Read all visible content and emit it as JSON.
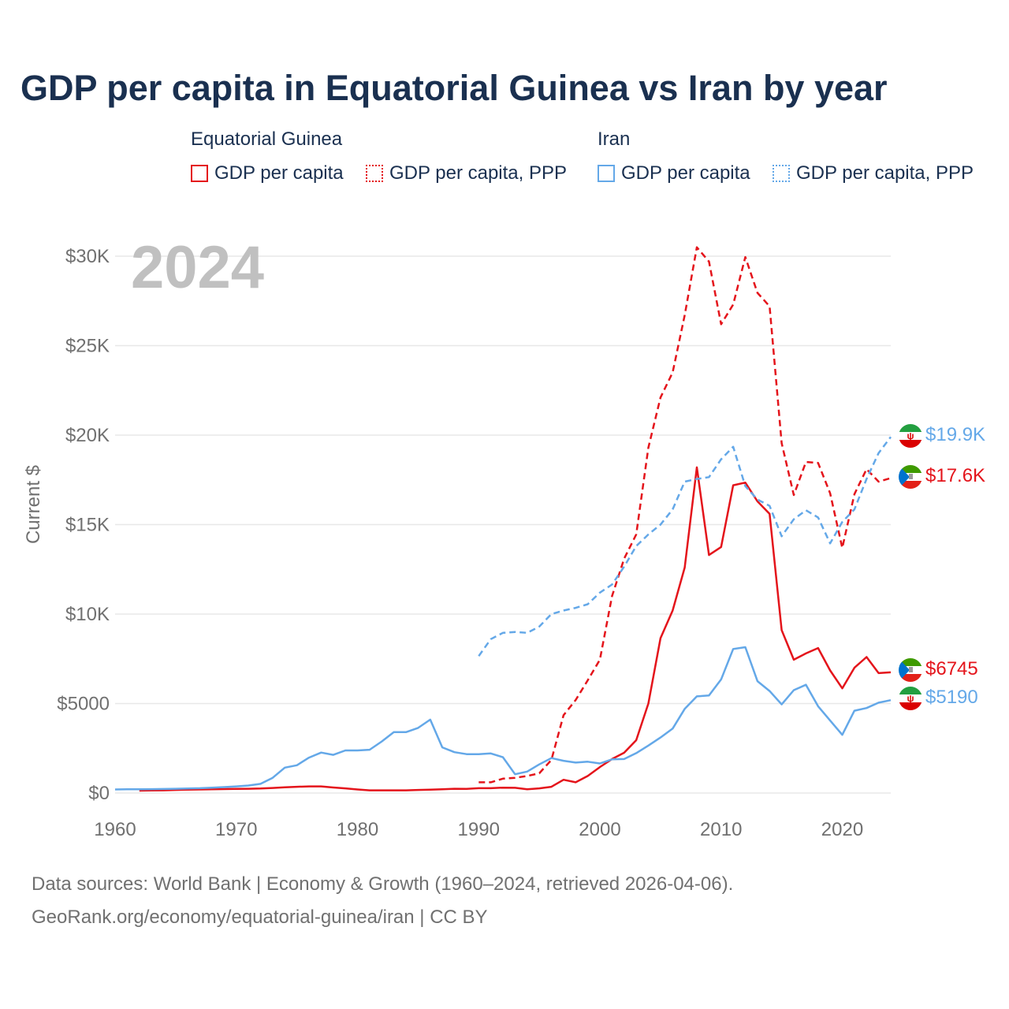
{
  "title": "GDP per capita in Equatorial Guinea vs Iran by year",
  "legend": {
    "groups": [
      {
        "name": "Equatorial Guinea",
        "items": [
          "GDP per capita",
          "GDP per capita, PPP"
        ]
      },
      {
        "name": "Iran",
        "items": [
          "GDP per capita",
          "GDP per capita, PPP"
        ]
      }
    ]
  },
  "year_label": "2024",
  "source": {
    "line1": "Data sources: World Bank | Economy & Growth (1960–2024, retrieved 2026-04-06).",
    "line2": "GeoRank.org/economy/equatorial-guinea/iran | CC BY"
  },
  "colors": {
    "equatorial_guinea": "#e4141b",
    "iran": "#64a8e8",
    "grid": "#e8e8e8",
    "axis_text": "#707070"
  },
  "end_labels": [
    {
      "text": "$19.9K",
      "series": "iran_ppp",
      "flag": "iran"
    },
    {
      "text": "$17.6K",
      "series": "eg_ppp",
      "flag": "equatorial-guinea"
    },
    {
      "text": "$6745",
      "series": "eg_gdp",
      "flag": "equatorial-guinea"
    },
    {
      "text": "$5190",
      "series": "iran_gdp",
      "flag": "iran"
    }
  ],
  "chart_data": {
    "type": "line",
    "title": "GDP per capita in Equatorial Guinea vs Iran by year",
    "xlabel": "",
    "ylabel": "Current $",
    "xlim": [
      1960,
      2024
    ],
    "ylim": [
      0,
      30000
    ],
    "x_ticks": [
      1960,
      1970,
      1980,
      1990,
      2000,
      2010,
      2020
    ],
    "x_tick_labels": [
      "1960",
      "1970",
      "1980",
      "1990",
      "2000",
      "2010",
      "2020"
    ],
    "y_ticks": [
      0,
      5000,
      10000,
      15000,
      20000,
      25000,
      30000
    ],
    "y_tick_labels": [
      "$0",
      "$5000",
      "$10K",
      "$15K",
      "$20K",
      "$25K",
      "$30K"
    ],
    "grid": true,
    "legend_position": "top",
    "series": [
      {
        "name": "Equatorial Guinea GDP per capita",
        "key": "eg_gdp",
        "color": "#e4141b",
        "style": "solid",
        "points": [
          [
            1962,
            130
          ],
          [
            1963,
            140
          ],
          [
            1964,
            150
          ],
          [
            1965,
            170
          ],
          [
            1966,
            190
          ],
          [
            1967,
            200
          ],
          [
            1968,
            210
          ],
          [
            1969,
            220
          ],
          [
            1970,
            230
          ],
          [
            1971,
            240
          ],
          [
            1972,
            250
          ],
          [
            1973,
            280
          ],
          [
            1974,
            320
          ],
          [
            1975,
            350
          ],
          [
            1976,
            370
          ],
          [
            1977,
            370
          ],
          [
            1978,
            310
          ],
          [
            1979,
            260
          ],
          [
            1980,
            200
          ],
          [
            1981,
            150
          ],
          [
            1982,
            150
          ],
          [
            1983,
            150
          ],
          [
            1984,
            150
          ],
          [
            1985,
            170
          ],
          [
            1986,
            190
          ],
          [
            1987,
            210
          ],
          [
            1988,
            240
          ],
          [
            1989,
            230
          ],
          [
            1990,
            270
          ],
          [
            1991,
            270
          ],
          [
            1992,
            300
          ],
          [
            1993,
            290
          ],
          [
            1994,
            210
          ],
          [
            1995,
            260
          ],
          [
            1996,
            350
          ],
          [
            1997,
            740
          ],
          [
            1998,
            600
          ],
          [
            1999,
            950
          ],
          [
            2000,
            1450
          ],
          [
            2001,
            1900
          ],
          [
            2002,
            2250
          ],
          [
            2003,
            2950
          ],
          [
            2004,
            5000
          ],
          [
            2005,
            8650
          ],
          [
            2006,
            10200
          ],
          [
            2007,
            12600
          ],
          [
            2008,
            18200
          ],
          [
            2009,
            13300
          ],
          [
            2010,
            13750
          ],
          [
            2011,
            17200
          ],
          [
            2012,
            17350
          ],
          [
            2013,
            16300
          ],
          [
            2014,
            15600
          ],
          [
            2015,
            9100
          ],
          [
            2016,
            7450
          ],
          [
            2017,
            7800
          ],
          [
            2018,
            8100
          ],
          [
            2019,
            6850
          ],
          [
            2020,
            5850
          ],
          [
            2021,
            7000
          ],
          [
            2022,
            7600
          ],
          [
            2023,
            6700
          ],
          [
            2024,
            6745
          ]
        ]
      },
      {
        "name": "Equatorial Guinea GDP per capita, PPP",
        "key": "eg_ppp",
        "color": "#e4141b",
        "style": "dashed",
        "points": [
          [
            1990,
            600
          ],
          [
            1991,
            600
          ],
          [
            1992,
            800
          ],
          [
            1993,
            850
          ],
          [
            1994,
            950
          ],
          [
            1995,
            1100
          ],
          [
            1996,
            1850
          ],
          [
            1997,
            4350
          ],
          [
            1998,
            5200
          ],
          [
            1999,
            6300
          ],
          [
            2000,
            7450
          ],
          [
            2001,
            11000
          ],
          [
            2002,
            13100
          ],
          [
            2003,
            14450
          ],
          [
            2004,
            19300
          ],
          [
            2005,
            22100
          ],
          [
            2006,
            23500
          ],
          [
            2007,
            26700
          ],
          [
            2008,
            30500
          ],
          [
            2009,
            29700
          ],
          [
            2010,
            26200
          ],
          [
            2011,
            27300
          ],
          [
            2012,
            29950
          ],
          [
            2013,
            27950
          ],
          [
            2014,
            27200
          ],
          [
            2015,
            19550
          ],
          [
            2016,
            16650
          ],
          [
            2017,
            18500
          ],
          [
            2018,
            18450
          ],
          [
            2019,
            16750
          ],
          [
            2020,
            13700
          ],
          [
            2021,
            16700
          ],
          [
            2022,
            18100
          ],
          [
            2023,
            17400
          ],
          [
            2024,
            17600
          ]
        ]
      },
      {
        "name": "Iran GDP per capita",
        "key": "iran_gdp",
        "color": "#64a8e8",
        "style": "solid",
        "points": [
          [
            1960,
            200
          ],
          [
            1961,
            205
          ],
          [
            1962,
            210
          ],
          [
            1963,
            215
          ],
          [
            1964,
            225
          ],
          [
            1965,
            240
          ],
          [
            1966,
            255
          ],
          [
            1967,
            270
          ],
          [
            1968,
            300
          ],
          [
            1969,
            330
          ],
          [
            1970,
            370
          ],
          [
            1971,
            420
          ],
          [
            1972,
            510
          ],
          [
            1973,
            850
          ],
          [
            1974,
            1420
          ],
          [
            1975,
            1550
          ],
          [
            1976,
            1980
          ],
          [
            1977,
            2260
          ],
          [
            1978,
            2130
          ],
          [
            1979,
            2380
          ],
          [
            1980,
            2380
          ],
          [
            1981,
            2420
          ],
          [
            1982,
            2880
          ],
          [
            1983,
            3400
          ],
          [
            1984,
            3400
          ],
          [
            1985,
            3640
          ],
          [
            1986,
            4100
          ],
          [
            1987,
            2550
          ],
          [
            1988,
            2280
          ],
          [
            1989,
            2170
          ],
          [
            1990,
            2170
          ],
          [
            1991,
            2210
          ],
          [
            1992,
            2000
          ],
          [
            1993,
            1050
          ],
          [
            1994,
            1200
          ],
          [
            1995,
            1600
          ],
          [
            1996,
            1950
          ],
          [
            1997,
            1800
          ],
          [
            1998,
            1700
          ],
          [
            1999,
            1750
          ],
          [
            2000,
            1650
          ],
          [
            2001,
            1880
          ],
          [
            2002,
            1900
          ],
          [
            2003,
            2230
          ],
          [
            2004,
            2650
          ],
          [
            2005,
            3100
          ],
          [
            2006,
            3600
          ],
          [
            2007,
            4700
          ],
          [
            2008,
            5400
          ],
          [
            2009,
            5450
          ],
          [
            2010,
            6350
          ],
          [
            2011,
            8050
          ],
          [
            2012,
            8150
          ],
          [
            2013,
            6250
          ],
          [
            2014,
            5700
          ],
          [
            2015,
            4950
          ],
          [
            2016,
            5750
          ],
          [
            2017,
            6050
          ],
          [
            2018,
            4850
          ],
          [
            2019,
            4050
          ],
          [
            2020,
            3250
          ],
          [
            2021,
            4600
          ],
          [
            2022,
            4750
          ],
          [
            2023,
            5050
          ],
          [
            2024,
            5190
          ]
        ]
      },
      {
        "name": "Iran GDP per capita, PPP",
        "key": "iran_ppp",
        "color": "#64a8e8",
        "style": "dashed",
        "points": [
          [
            1990,
            7650
          ],
          [
            1991,
            8600
          ],
          [
            1992,
            8950
          ],
          [
            1993,
            9000
          ],
          [
            1994,
            8950
          ],
          [
            1995,
            9300
          ],
          [
            1996,
            10000
          ],
          [
            1997,
            10200
          ],
          [
            1998,
            10350
          ],
          [
            1999,
            10550
          ],
          [
            2000,
            11200
          ],
          [
            2001,
            11650
          ],
          [
            2002,
            12650
          ],
          [
            2003,
            13800
          ],
          [
            2004,
            14450
          ],
          [
            2005,
            15000
          ],
          [
            2006,
            15850
          ],
          [
            2007,
            17400
          ],
          [
            2008,
            17550
          ],
          [
            2009,
            17650
          ],
          [
            2010,
            18650
          ],
          [
            2011,
            19350
          ],
          [
            2012,
            17150
          ],
          [
            2013,
            16400
          ],
          [
            2014,
            16050
          ],
          [
            2015,
            14350
          ],
          [
            2016,
            15300
          ],
          [
            2017,
            15800
          ],
          [
            2018,
            15400
          ],
          [
            2019,
            13950
          ],
          [
            2020,
            15150
          ],
          [
            2021,
            15850
          ],
          [
            2022,
            17550
          ],
          [
            2023,
            19000
          ],
          [
            2024,
            19900
          ]
        ]
      }
    ]
  }
}
